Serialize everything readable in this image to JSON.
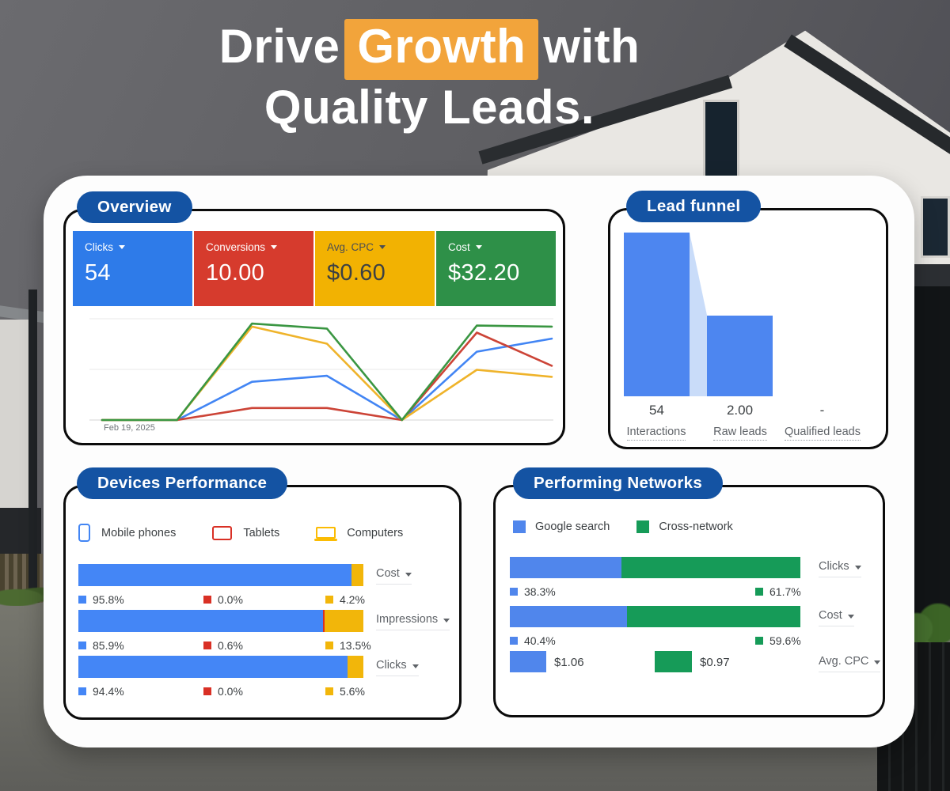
{
  "title": {
    "pre": "Drive",
    "highlight": "Growth",
    "post": "with",
    "line2": "Quality Leads."
  },
  "colors": {
    "pill_blue": "#1453A3",
    "highlight_orange": "#F2A43B",
    "panel_border": "#0B0B0B",
    "kpi_blue": "#2E7BE9",
    "kpi_red": "#D63B2D",
    "kpi_yellow": "#F2B202",
    "kpi_green": "#2E9048",
    "device_blue": "#4486F6",
    "device_red": "#D93025",
    "device_yellow": "#F2B60A",
    "network_blue": "#5086EC",
    "network_green": "#169B58",
    "funnel_blue": "#4D86F0",
    "funnel_connector": "#C9DCF9"
  },
  "overview": {
    "pill": "Overview",
    "kpis": [
      {
        "label": "Clicks",
        "value": "54"
      },
      {
        "label": "Conversions",
        "value": "10.00"
      },
      {
        "label": "Avg. CPC",
        "value": "$0.60"
      },
      {
        "label": "Cost",
        "value": "$32.20"
      }
    ],
    "date": "Feb 19, 2025"
  },
  "lead_funnel": {
    "pill": "Lead funnel",
    "stages": [
      {
        "value": "54",
        "label": "Interactions"
      },
      {
        "value": "2.00",
        "label": "Raw leads"
      },
      {
        "value": "-",
        "label": "Qualified leads"
      }
    ]
  },
  "devices": {
    "pill": "Devices Performance",
    "legend": [
      {
        "icon": "phone-icon",
        "label": "Mobile phones"
      },
      {
        "icon": "tablet-icon",
        "label": "Tablets"
      },
      {
        "icon": "laptop-icon",
        "label": "Computers"
      }
    ],
    "rows": [
      {
        "metric": "Cost",
        "stats": [
          {
            "text": "95.8%"
          },
          {
            "text": "0.0%"
          },
          {
            "text": "4.2%"
          }
        ]
      },
      {
        "metric": "Impressions",
        "stats": [
          {
            "text": "85.9%"
          },
          {
            "text": "0.6%"
          },
          {
            "text": "13.5%"
          }
        ]
      },
      {
        "metric": "Clicks",
        "stats": [
          {
            "text": "94.4%"
          },
          {
            "text": "0.0%"
          },
          {
            "text": "5.6%"
          }
        ]
      }
    ]
  },
  "networks": {
    "pill": "Performing Networks",
    "legend": [
      {
        "label": "Google search"
      },
      {
        "label": "Cross-network"
      }
    ],
    "rows": [
      {
        "metric": "Clicks",
        "stats": [
          {
            "text": "38.3%"
          },
          {
            "text": "61.7%"
          }
        ]
      },
      {
        "metric": "Cost",
        "stats": [
          {
            "text": "40.4%"
          },
          {
            "text": "59.6%"
          }
        ]
      }
    ],
    "cpc": {
      "metric": "Avg. CPC",
      "blue_value": "$1.06",
      "green_value": "$0.97"
    }
  },
  "chart_data": [
    {
      "id": "overview_trend",
      "type": "line",
      "x_start_label": "Feb 19, 2025",
      "points": 7,
      "y_axis": "unlabeled",
      "ylim": [
        0,
        100
      ],
      "grid": true,
      "legend_position": "none",
      "series": [
        {
          "name": "Clicks",
          "color": "#4285F4",
          "values": [
            0,
            0,
            38,
            44,
            0,
            68,
            81
          ]
        },
        {
          "name": "Conversions",
          "color": "#CC4437",
          "values": [
            0,
            0,
            12,
            12,
            0,
            87,
            54
          ]
        },
        {
          "name": "Avg. CPC",
          "color": "#EFB32A",
          "values": [
            0,
            0,
            93,
            76,
            0,
            50,
            43
          ]
        },
        {
          "name": "Cost",
          "color": "#3A9642",
          "values": [
            0,
            0,
            96,
            91,
            0,
            94,
            93
          ]
        }
      ]
    },
    {
      "id": "lead_funnel",
      "type": "bar",
      "categories": [
        "Interactions",
        "Raw leads",
        "Qualified leads"
      ],
      "values": [
        54,
        2.0,
        null
      ],
      "display_values": [
        "54",
        "2.00",
        "-"
      ],
      "bar_height_pct": [
        100,
        49.5,
        0
      ]
    },
    {
      "id": "devices_performance",
      "type": "bar",
      "stacked": true,
      "unit": "%",
      "categories": [
        "Cost",
        "Impressions",
        "Clicks"
      ],
      "series": [
        {
          "name": "Mobile phones",
          "color": "#4486F6",
          "values": [
            95.8,
            85.9,
            94.4
          ]
        },
        {
          "name": "Tablets",
          "color": "#D93025",
          "values": [
            0.0,
            0.6,
            0.0
          ]
        },
        {
          "name": "Computers",
          "color": "#F2B60A",
          "values": [
            4.2,
            13.5,
            5.6
          ]
        }
      ]
    },
    {
      "id": "performing_networks",
      "type": "bar",
      "stacked": true,
      "unit": "%",
      "categories": [
        "Clicks",
        "Cost"
      ],
      "series": [
        {
          "name": "Google search",
          "color": "#5086EC",
          "values": [
            38.3,
            40.4
          ]
        },
        {
          "name": "Cross-network",
          "color": "#169B58",
          "values": [
            61.7,
            59.6
          ]
        }
      ],
      "avg_cpc": {
        "Google search": "$1.06",
        "Cross-network": "$0.97"
      }
    }
  ]
}
